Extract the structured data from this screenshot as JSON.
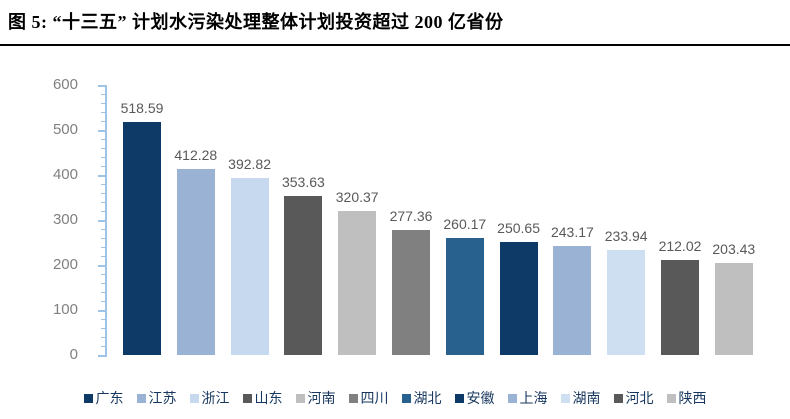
{
  "figure": {
    "title": "图 5: “十三五” 计划水污染处理整体计划投资超过 200 亿省份"
  },
  "chart_data": {
    "type": "bar",
    "categories": [
      "广东",
      "江苏",
      "浙江",
      "山东",
      "河南",
      "四川",
      "湖北",
      "安徽",
      "上海",
      "湖南",
      "河北",
      "陕西"
    ],
    "values": [
      518.59,
      412.28,
      392.82,
      353.63,
      320.37,
      277.36,
      260.17,
      250.65,
      243.17,
      233.94,
      212.02,
      203.43
    ],
    "bar_colors": [
      "#0d3a66",
      "#9ab3d5",
      "#c6d9ef",
      "#595959",
      "#bfbfbf",
      "#808080",
      "#29618e",
      "#0d3a66",
      "#9ab3d5",
      "#cfdff2",
      "#595959",
      "#bfbfbf"
    ],
    "title": "",
    "xlabel": "",
    "ylabel": "",
    "ylim": [
      0,
      600
    ],
    "y_ticks": [
      0,
      100,
      200,
      300,
      400,
      500,
      600
    ],
    "minor_tick_step": 20,
    "grid": false,
    "legend_position": "bottom",
    "colors": {
      "axis_line": "#9dc3e6",
      "tick_label": "#808080",
      "data_label": "#595959",
      "legend_text": "#17375e",
      "title_text": "#000000",
      "divider": "#000000"
    }
  }
}
